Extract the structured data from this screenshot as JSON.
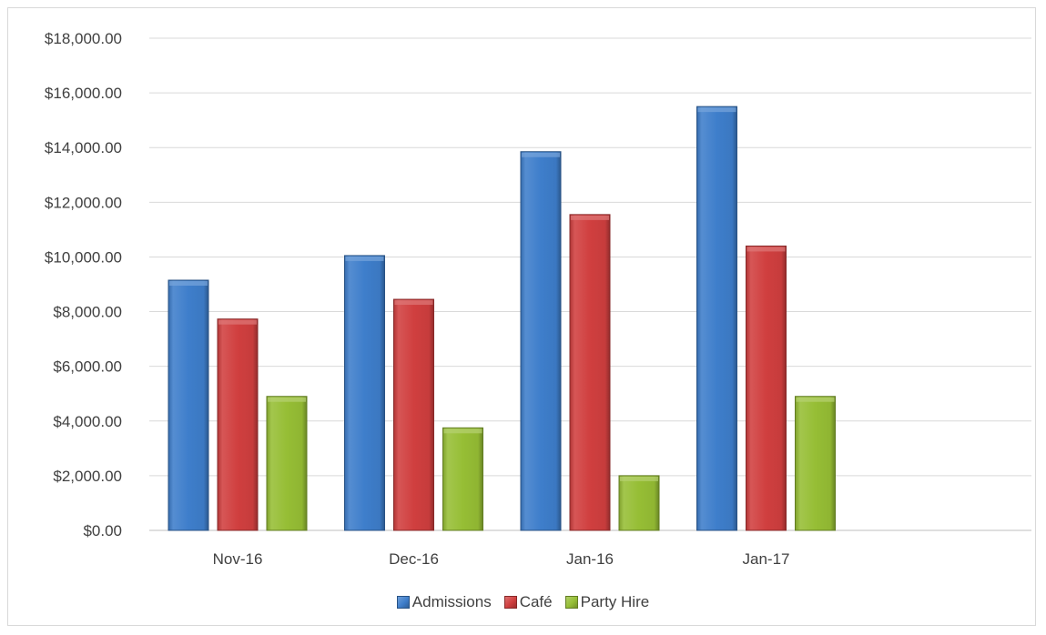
{
  "chart_data": {
    "type": "bar",
    "categories": [
      "Nov-16",
      "Dec-16",
      "Jan-16",
      "Jan-17"
    ],
    "series": [
      {
        "name": "Admissions",
        "color": "#3e7ecb",
        "values": [
          9150,
          10050,
          13850,
          15500
        ]
      },
      {
        "name": "Café",
        "color": "#d03f3f",
        "values": [
          7730,
          8450,
          11550,
          10400
        ]
      },
      {
        "name": "Party Hire",
        "color": "#96be35",
        "values": [
          4900,
          3750,
          2000,
          4900
        ]
      }
    ],
    "title": "",
    "xlabel": "",
    "ylabel": "",
    "ylim": [
      0,
      18000
    ],
    "ytick_step": 2000,
    "y_tick_labels": [
      "$0.00",
      "$2,000.00",
      "$4,000.00",
      "$6,000.00",
      "$8,000.00",
      "$10,000.00",
      "$12,000.00",
      "$14,000.00",
      "$16,000.00",
      "$18,000.00"
    ],
    "grid": true,
    "legend_position": "bottom"
  }
}
